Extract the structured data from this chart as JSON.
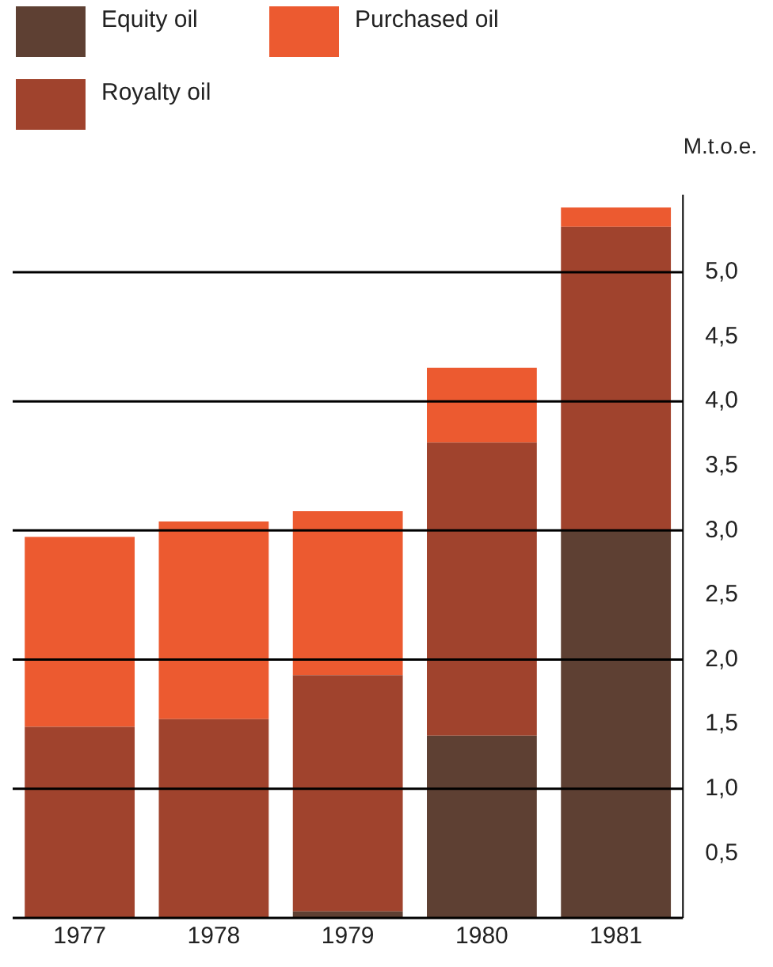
{
  "chart_data": {
    "type": "bar",
    "stacked": true,
    "ylabel": "M.t.o.e.",
    "legend": "top left",
    "grid": false,
    "categories": [
      "1977",
      "1978",
      "1979",
      "1980",
      "1981"
    ],
    "series": [
      {
        "name": "Equity oil",
        "color": "#5e4033",
        "values": [
          0,
          0,
          0.05,
          1.41,
          3.0
        ]
      },
      {
        "name": "Royalty oil",
        "color": "#a0432d",
        "values": [
          1.48,
          1.54,
          1.83,
          2.27,
          2.35
        ]
      },
      {
        "name": "Purchased oil",
        "color": "#ec5a30",
        "values": [
          1.47,
          1.53,
          1.27,
          0.58,
          0.15
        ]
      }
    ],
    "ylim": [
      0,
      5.6
    ],
    "yticks": [
      {
        "value": 0.5,
        "label": "0,5"
      },
      {
        "value": 1,
        "label": "1,0"
      },
      {
        "value": 1.5,
        "label": "1,5"
      },
      {
        "value": 2,
        "label": "2,0"
      },
      {
        "value": 2.5,
        "label": "2,5"
      },
      {
        "value": 3,
        "label": "3,0"
      },
      {
        "value": 3.5,
        "label": "3,5"
      },
      {
        "value": 4,
        "label": "4,0"
      },
      {
        "value": 4.5,
        "label": "4,5"
      },
      {
        "value": 5,
        "label": "5,0"
      }
    ],
    "ref_lines": [
      {
        "axis": "y",
        "value": 1,
        "color": "#000000"
      },
      {
        "axis": "y",
        "value": 2,
        "color": "#000000"
      },
      {
        "axis": "y",
        "value": 3,
        "color": "#000000"
      },
      {
        "axis": "y",
        "value": 4,
        "color": "#000000"
      },
      {
        "axis": "y",
        "value": 5,
        "color": "#000000"
      }
    ]
  }
}
